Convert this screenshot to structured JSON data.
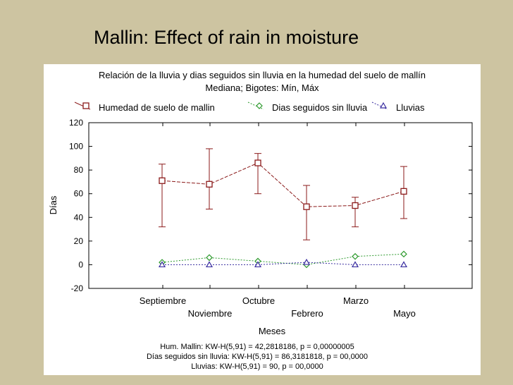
{
  "slide": {
    "title": "Mallin: Effect of rain in moisture"
  },
  "colors": {
    "background": "#cdc4a1",
    "humedad": "#8b1a1a",
    "dias": "#2e9a2e",
    "lluvias": "#3a2ea0"
  },
  "chart_data": {
    "type": "line",
    "title": "Relación de la lluvia y dias seguidos sin lluvia en la humedad del suelo de mallín",
    "subtitle": "Mediana;  Bigotes: Mín, Máx",
    "xlabel": "Meses",
    "ylabel": "Días",
    "ylim": [
      -20,
      120
    ],
    "yticks": [
      -20,
      0,
      20,
      40,
      60,
      80,
      100,
      120
    ],
    "categories": [
      "Septiembre",
      "Noviembre",
      "Octubre",
      "Febrero",
      "Marzo",
      "Mayo"
    ],
    "legend_position": "top",
    "series": [
      {
        "name": "Humedad de suelo de mallin",
        "marker": "square",
        "values": [
          71,
          68,
          86,
          49,
          50,
          62
        ],
        "min": [
          32,
          47,
          60,
          21,
          32,
          39
        ],
        "max": [
          85,
          98,
          94,
          67,
          57,
          83
        ]
      },
      {
        "name": "Dias seguidos sin lluvia",
        "marker": "diamond",
        "values": [
          2,
          6,
          3,
          0,
          7,
          9
        ]
      },
      {
        "name": "Lluvias",
        "marker": "triangle",
        "values": [
          0,
          0,
          0,
          2,
          0,
          0
        ]
      }
    ],
    "stats": [
      "Hum. Mallin:  KW-H(5,91) = 42,2818186, p = 0,00000005",
      "Días seguidos sin lluvia:  KW-H(5,91) = 86,3181818, p = 00,0000",
      "Lluvias:  KW-H(5,91) = 90, p = 00,0000"
    ]
  }
}
